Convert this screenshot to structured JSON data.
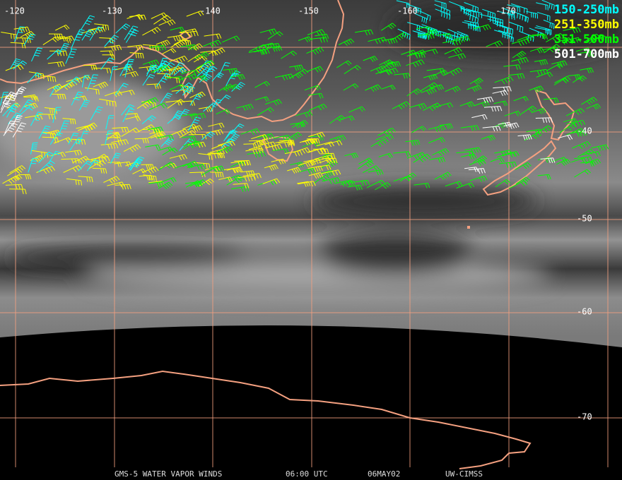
{
  "legend": [
    {
      "label": "150-250mb",
      "color": "#00ffff"
    },
    {
      "label": "251-350mb",
      "color": "#ffff00"
    },
    {
      "label": "351-500mb",
      "color": "#00ff00"
    },
    {
      "label": "501-700mb",
      "color": "#ffffff"
    }
  ],
  "longitude_labels": [
    "-120",
    "-130",
    "-140",
    "-150",
    "-160",
    "-170"
  ],
  "latitude_labels": [
    "-40",
    "-50",
    "-60",
    "-70"
  ],
  "footer": [
    "GMS-5 WATER VAPOR WINDS",
    "06:00 UTC",
    "06MAY02",
    "UW-CIMSS"
  ]
}
